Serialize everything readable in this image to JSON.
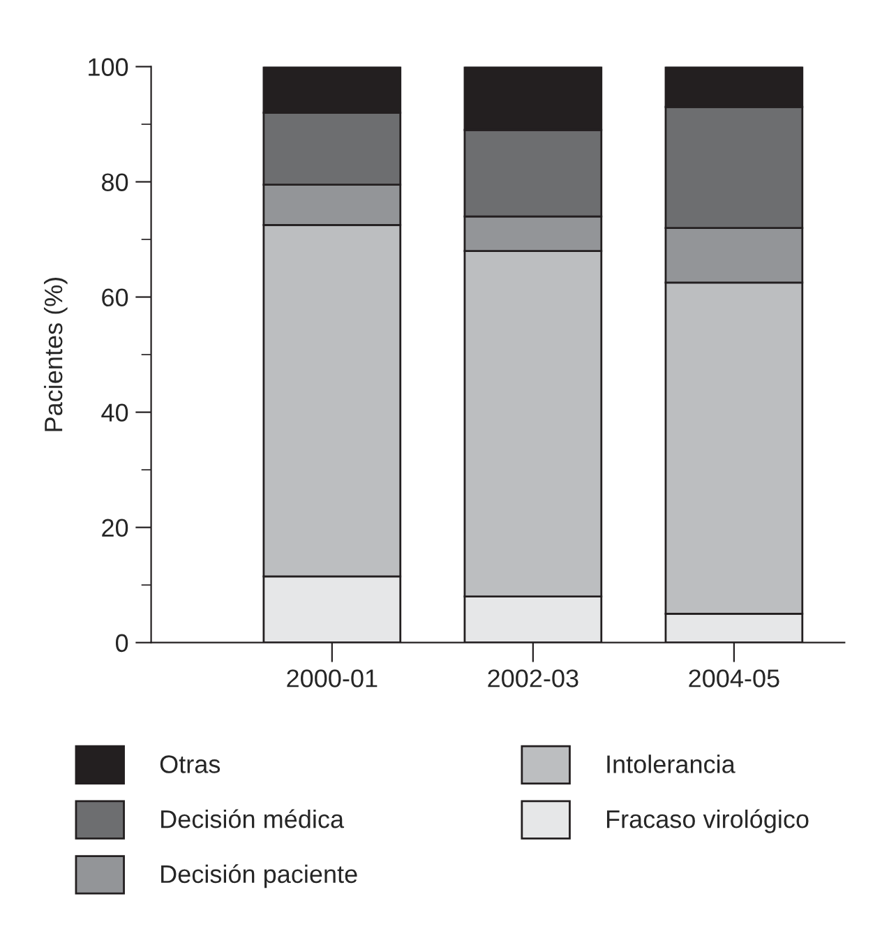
{
  "chart_data": {
    "type": "bar",
    "stacked": true,
    "ylabel": "Pacientes (%)",
    "categories": [
      "2000-01",
      "2002-03",
      "2004-05"
    ],
    "series": [
      {
        "name": "Fracaso virológico",
        "color": "#e6e7e8",
        "values": [
          11.5,
          8,
          5
        ]
      },
      {
        "name": "Intolerancia",
        "color": "#bcbec0",
        "values": [
          61,
          60,
          57.5
        ]
      },
      {
        "name": "Decisión paciente",
        "color": "#939598",
        "values": [
          7,
          6,
          9.5
        ]
      },
      {
        "name": "Decisión médica",
        "color": "#6d6e70",
        "values": [
          12.5,
          15,
          21
        ]
      },
      {
        "name": "Otras",
        "color": "#231f20",
        "values": [
          8,
          11,
          7
        ]
      }
    ],
    "ylim": [
      0,
      100
    ],
    "yticks": [
      0,
      {
        "value": 10,
        "label": null
      },
      20,
      {
        "value": 30,
        "label": null
      },
      40,
      {
        "value": 50,
        "label": null
      },
      60,
      {
        "value": 70,
        "label": null
      },
      80,
      {
        "value": 90,
        "label": null
      },
      100
    ],
    "grid": false,
    "legend": "bottom"
  }
}
